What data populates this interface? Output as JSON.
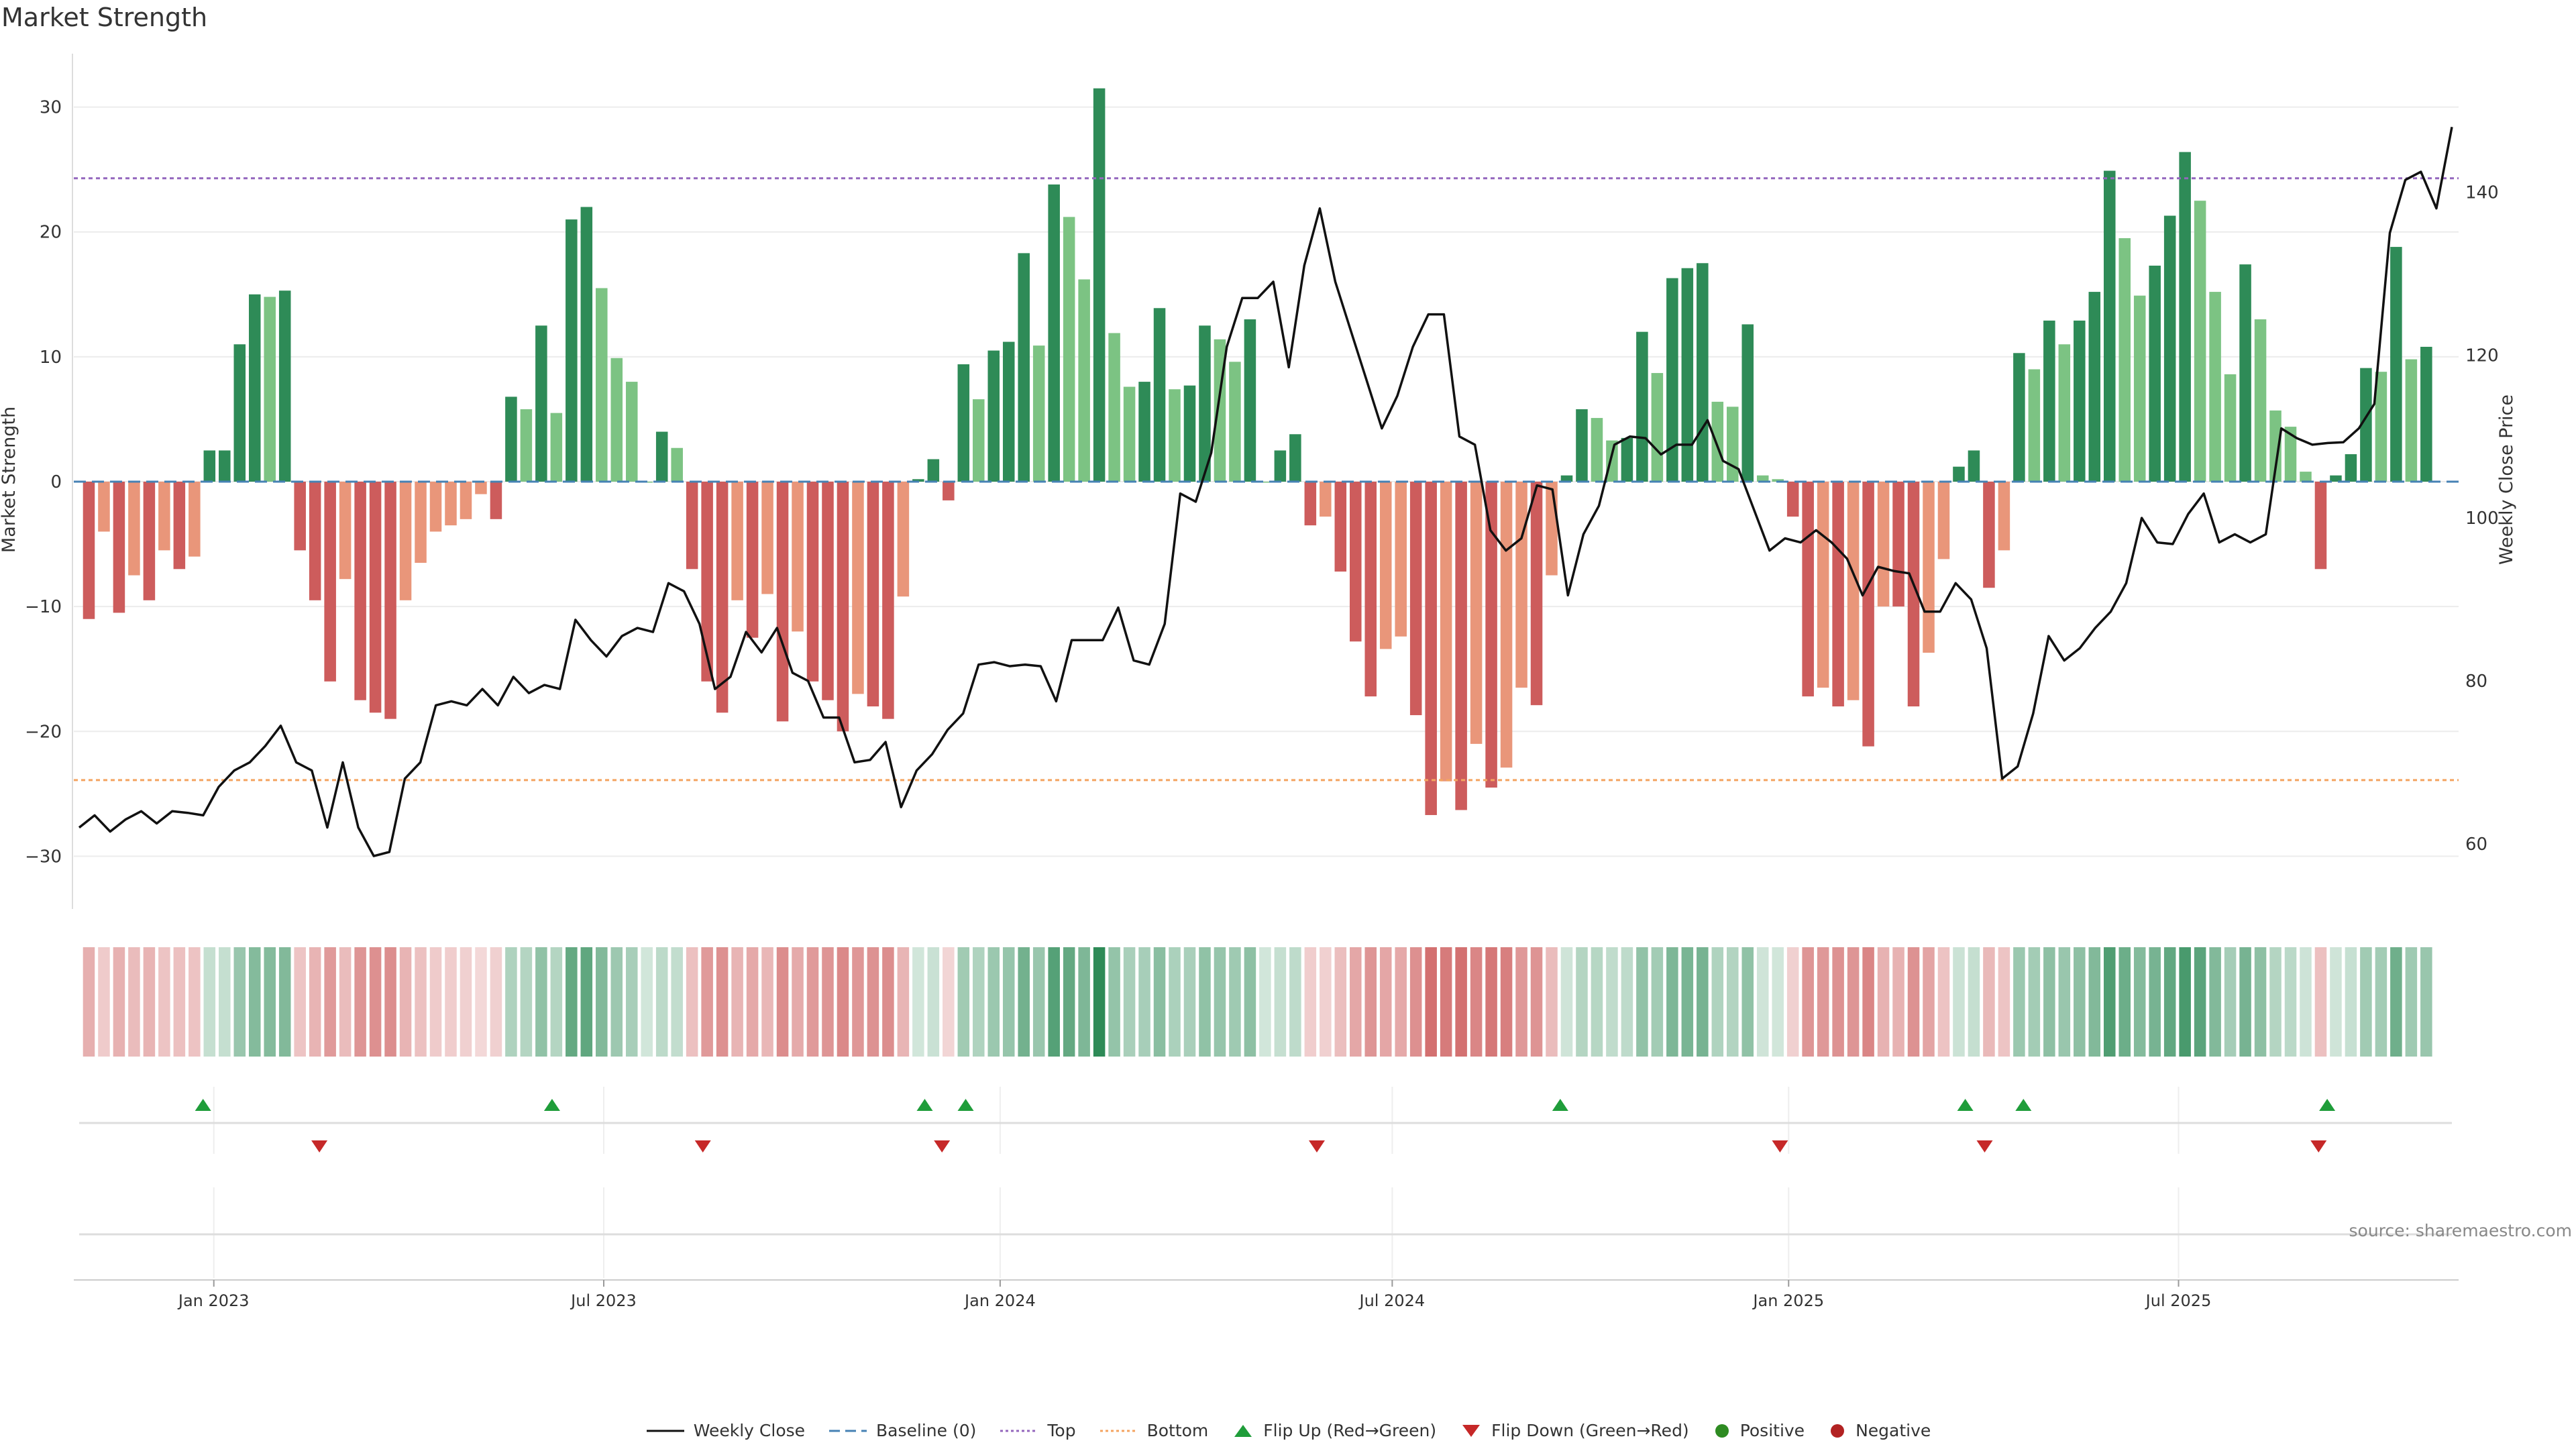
{
  "header": {
    "title": "Market Strength"
  },
  "source_note": "source: sharemaestro.com",
  "colors": {
    "strong_green": "#2e8b57",
    "light_green": "#7cc383",
    "strong_red": "#cd5c5c",
    "light_red": "#e9967a",
    "price_line": "#111111",
    "baseline": "#4682b4",
    "top_line": "#9467bd",
    "bottom_line": "#f4a460",
    "flip_up": "#1f9d3a",
    "flip_down": "#c62828",
    "positive": "#2e8b22",
    "negative": "#b22222"
  },
  "legend": [
    {
      "key": "weekly_close",
      "label": "Weekly Close"
    },
    {
      "key": "baseline",
      "label": "Baseline (0)"
    },
    {
      "key": "top",
      "label": "Top"
    },
    {
      "key": "bottom",
      "label": "Bottom"
    },
    {
      "key": "flip_up",
      "label": "Flip Up (Red→Green)"
    },
    {
      "key": "flip_down",
      "label": "Flip Down (Green→Red)"
    },
    {
      "key": "positive",
      "label": "Positive"
    },
    {
      "key": "negative",
      "label": "Negative"
    }
  ],
  "chart_data": {
    "type": "bar",
    "title": "Market Strength",
    "ylabel": "Market Strength",
    "y2label": "Weekly Close Price",
    "ylim": [
      -34,
      34.5
    ],
    "y2lim": [
      52,
      157
    ],
    "yticks": [
      -30,
      -20,
      -10,
      0,
      10,
      20,
      30
    ],
    "y2ticks": [
      60,
      80,
      100,
      120,
      140
    ],
    "top_level": 24.3,
    "bottom_level": -23.9,
    "baseline_level": 0,
    "x_start": "2022-10-28",
    "x_end": "2025-11-08",
    "week_start": "2022-11-04",
    "xtick_labels": [
      "Jan 2023",
      "Jul 2023",
      "Jan 2024",
      "Jul 2024",
      "Jan 2025",
      "Jul 2025"
    ],
    "xtick_dates": [
      "2023-01-01",
      "2023-07-01",
      "2024-01-01",
      "2024-07-01",
      "2025-01-01",
      "2025-07-01"
    ],
    "strength": [
      -11,
      -4,
      -10.5,
      -7.5,
      -9.5,
      -5.5,
      -7,
      -6,
      2.5,
      2.5,
      11,
      15,
      14.8,
      15.3,
      -5.5,
      -9.5,
      -16,
      -7.8,
      -17.5,
      -18.5,
      -19,
      -9.5,
      -6.5,
      -4,
      -3.5,
      -3,
      -1,
      -3,
      6.8,
      5.8,
      12.5,
      5.5,
      21,
      22,
      15.5,
      9.9,
      8,
      0,
      4,
      2.7,
      -7,
      -16,
      -18.5,
      -9.5,
      -12.5,
      -9,
      -19.2,
      -12,
      -16,
      -17.5,
      -20,
      -17,
      -18,
      -19,
      -9.2,
      0.2,
      1.8,
      -1.5,
      9.4,
      6.6,
      10.5,
      11.2,
      18.3,
      10.9,
      23.8,
      21.2,
      16.2,
      31.5,
      11.9,
      7.6,
      8,
      13.9,
      7.4,
      7.7,
      12.5,
      11.4,
      9.6,
      13,
      0,
      2.5,
      3.8,
      -3.5,
      -2.8,
      -7.2,
      -12.8,
      -17.2,
      -13.4,
      -12.4,
      -18.7,
      -26.7,
      -24,
      -26.3,
      -21,
      -24.5,
      -22.9,
      -16.5,
      -17.9,
      -7.5,
      0.5,
      5.8,
      5.1,
      3.3,
      3.5,
      12,
      8.7,
      16.3,
      17.1,
      17.5,
      6.4,
      6,
      12.6,
      0.5,
      0.2,
      -2.8,
      -17.2,
      -16.5,
      -18,
      -17.5,
      -21.2,
      -10,
      -10,
      -18,
      -13.7,
      -6.2,
      1.2,
      2.5,
      -8.5,
      -5.5,
      10.3,
      9,
      12.9,
      11,
      12.9,
      15.2,
      24.9,
      19.5,
      14.9,
      17.3,
      21.3,
      26.4,
      22.5,
      15.2,
      8.6,
      17.4,
      13,
      5.7,
      4.4,
      0.8,
      -7,
      0.5,
      2.2,
      9.1,
      8.8,
      18.8,
      9.8,
      10.8
    ],
    "close_price": [
      62,
      63.5,
      61.5,
      63,
      64,
      62.5,
      64,
      63.8,
      63.5,
      67,
      69,
      70,
      72,
      74.5,
      70,
      69,
      62,
      70,
      62,
      58.5,
      59,
      68,
      70,
      77,
      77.5,
      77,
      79,
      77,
      80.5,
      78.5,
      79.5,
      79,
      87.5,
      85,
      83,
      85.5,
      86.5,
      86,
      92,
      91,
      87,
      79,
      80.5,
      86,
      83.5,
      86.5,
      81,
      80,
      75.5,
      75.5,
      70,
      70.3,
      72.5,
      64.5,
      69,
      71,
      74,
      76,
      82,
      82.3,
      81.8,
      82,
      81.8,
      77.5,
      85,
      85,
      85,
      89,
      82.5,
      82,
      87,
      103,
      102,
      108,
      121,
      127,
      127,
      129,
      118.5,
      131,
      138,
      129,
      123,
      117,
      111,
      115,
      121,
      125,
      125,
      110,
      109,
      98.5,
      96,
      97.5,
      104,
      103.5,
      90.5,
      98,
      101.5,
      109,
      110,
      109.8,
      107.8,
      109,
      109,
      112,
      107,
      106,
      101,
      96,
      97.5,
      97,
      98.5,
      97,
      95,
      90.5,
      94,
      93.5,
      93.2,
      88.5,
      88.5,
      92,
      90,
      84,
      68,
      69.5,
      76,
      85.5,
      82.5,
      84,
      86.5,
      88.5,
      92,
      100,
      97,
      96.8,
      100.5,
      103,
      97,
      98,
      97,
      98,
      111,
      109.8,
      109,
      109.2,
      109.3,
      111,
      114,
      135,
      141.5,
      142.5,
      138,
      148
    ]
  },
  "signals": {
    "flip_up_dates": [
      "2022-12-27",
      "2023-06-07",
      "2023-11-27",
      "2023-12-16",
      "2024-09-17",
      "2025-03-24",
      "2025-04-20",
      "2025-09-08"
    ],
    "flip_down_dates": [
      "2023-02-19",
      "2023-08-16",
      "2023-12-05",
      "2024-05-27",
      "2024-12-28",
      "2025-04-02",
      "2025-09-04"
    ]
  }
}
